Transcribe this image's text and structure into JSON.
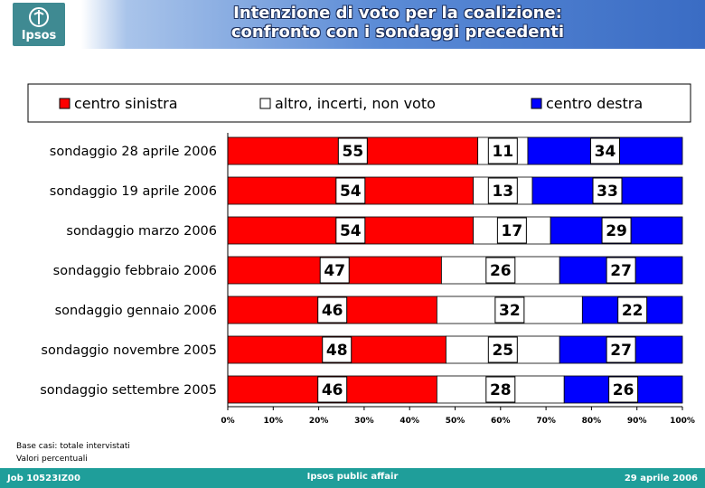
{
  "header": {
    "logo_text": "Ipsos",
    "title_line1": "Intenzione di voto per la coalizione:",
    "title_line2": "confronto con i sondaggi precedenti"
  },
  "chart_data": {
    "type": "bar",
    "orientation": "horizontal",
    "stacked": "percent",
    "categories": [
      "sondaggio 28 aprile 2006",
      "sondaggio 19 aprile 2006",
      "sondaggio marzo 2006",
      "sondaggio febbraio 2006",
      "sondaggio gennaio 2006",
      "sondaggio novembre 2005",
      "sondaggio settembre 2005"
    ],
    "series": [
      {
        "name": "centro sinistra",
        "color": "#ff0000",
        "values": [
          55,
          54,
          54,
          47,
          46,
          48,
          46
        ]
      },
      {
        "name": "altro, incerti, non voto",
        "color": "#ffffff",
        "values": [
          11,
          13,
          17,
          26,
          32,
          25,
          28
        ]
      },
      {
        "name": "centro destra",
        "color": "#0000ff",
        "values": [
          34,
          33,
          29,
          27,
          22,
          27,
          26
        ]
      }
    ],
    "x_ticks": [
      "0%",
      "10%",
      "20%",
      "30%",
      "40%",
      "50%",
      "60%",
      "70%",
      "80%",
      "90%",
      "100%"
    ],
    "xlim": [
      0,
      100
    ],
    "legend_position": "top",
    "grid": false
  },
  "notes": {
    "line1": "Base casi: totale intervistati",
    "line2": "Valori percentuali"
  },
  "footer": {
    "left": "Job 10523IZ00",
    "center": "Ipsos public affair",
    "right": "29 aprile 2006"
  }
}
